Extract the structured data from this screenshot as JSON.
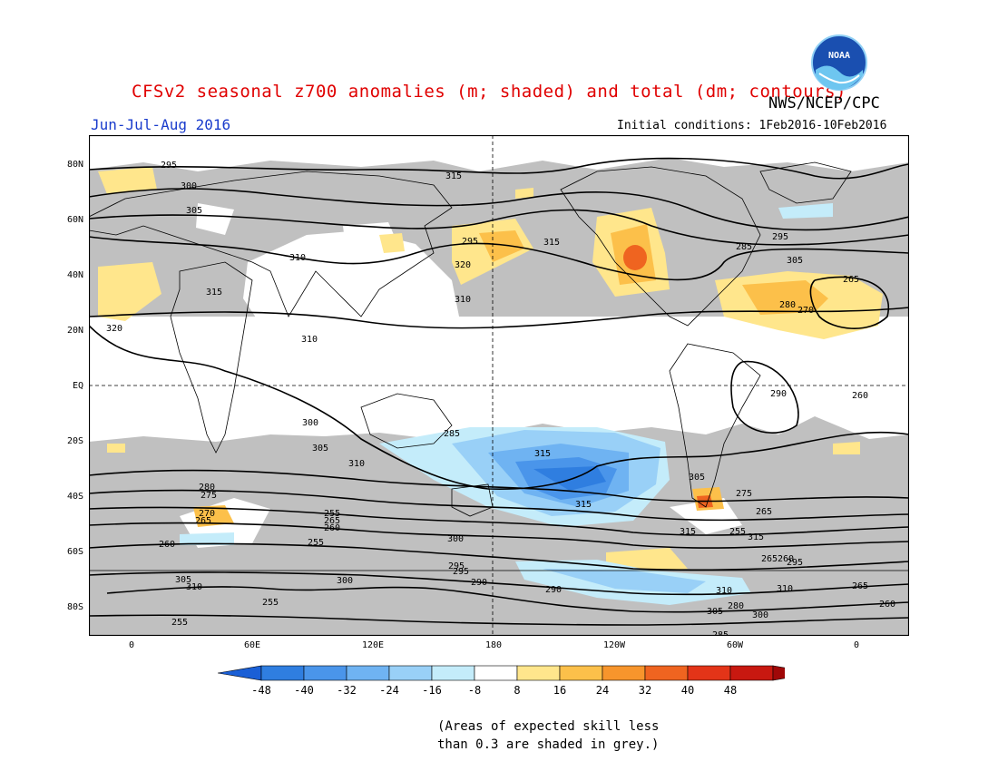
{
  "header": {
    "title": "CFSv2 seasonal z700 anomalies (m; shaded) and total (dm; contours)",
    "agency": "NWS/NCEP/CPC",
    "period": "Jun-Jul-Aug 2016",
    "initial_conditions": "Initial conditions: 1Feb2016-10Feb2016"
  },
  "logo": {
    "text": "NOAA"
  },
  "map": {
    "lat_labels": [
      "80N",
      "60N",
      "40N",
      "20N",
      "EQ",
      "20S",
      "40S",
      "60S",
      "80S"
    ],
    "lon_labels": [
      "0",
      "60E",
      "120E",
      "180",
      "120W",
      "60W",
      "0"
    ],
    "contour_labels": [
      "295",
      "300",
      "305",
      "310",
      "315",
      "320",
      "310",
      "315",
      "295",
      "300",
      "305",
      "310",
      "315",
      "320",
      "310",
      "315",
      "315",
      "315",
      "315",
      "310",
      "305",
      "300",
      "295",
      "290",
      "285",
      "280",
      "275",
      "270",
      "265",
      "260",
      "255",
      "265",
      "260",
      "255",
      "305",
      "310",
      "300",
      "295",
      "290",
      "285",
      "280",
      "275",
      "265",
      "255",
      "265",
      "260",
      "265",
      "260",
      "255",
      "310",
      "305",
      "300",
      "295",
      "290",
      "285",
      "295",
      "305",
      "280",
      "270",
      "265",
      "260",
      "255"
    ],
    "colors": {
      "land_grey": "#c0c0c0",
      "coast": "#000000",
      "contour": "#000000"
    }
  },
  "colorbar": {
    "labels": [
      "-48",
      "-40",
      "-32",
      "-24",
      "-16",
      "-8",
      "8",
      "16",
      "24",
      "32",
      "40",
      "48"
    ],
    "colors": [
      "#1a5fd6",
      "#2f7ee0",
      "#4a95ea",
      "#6fb3f2",
      "#99d0f7",
      "#c4ecfa",
      "#ffffff",
      "#ffe68c",
      "#fcc04a",
      "#f7952c",
      "#ef6420",
      "#e33418",
      "#c81810",
      "#a00808"
    ]
  },
  "footnote": {
    "line1": "(Areas of expected skill less",
    "line2": "than 0.3 are shaded in grey.)"
  }
}
